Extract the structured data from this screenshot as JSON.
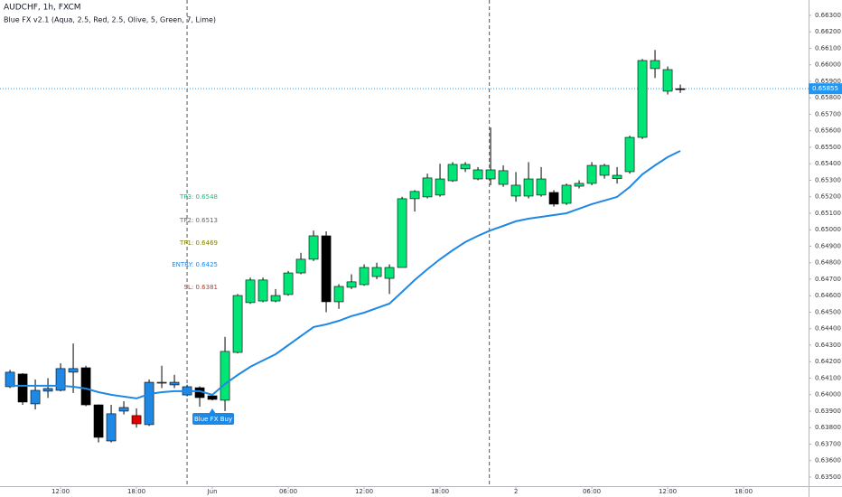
{
  "chart_data": {
    "type": "candlestick",
    "title": "AUDCHF, 1h, FXCM",
    "subtitle": "Blue FX v2.1 (Aqua, 2.5, Red, 2.5, Olive, 5, Green, 7, Lime)",
    "x": [
      8,
      9,
      10,
      11,
      12,
      13,
      14,
      15,
      16,
      17,
      18,
      19,
      20,
      21,
      22,
      23,
      24,
      25,
      26,
      27,
      28,
      29,
      30,
      31,
      32,
      33,
      34,
      35,
      36,
      37,
      38,
      39,
      40,
      41,
      42,
      43,
      44,
      45,
      46,
      47,
      48,
      49,
      50,
      51,
      52,
      53,
      54,
      55,
      56,
      57,
      58,
      59,
      60,
      61
    ],
    "open": [
      0.64048,
      0.64125,
      0.63944,
      0.64021,
      0.64026,
      0.64136,
      0.64163,
      0.63938,
      0.63719,
      0.639,
      0.63873,
      0.63818,
      0.6407,
      0.64059,
      0.63998,
      0.64042,
      0.63993,
      0.63966,
      0.64256,
      0.64558,
      0.64568,
      0.64568,
      0.64607,
      0.64738,
      0.64821,
      0.64963,
      0.64563,
      0.64651,
      0.64667,
      0.64716,
      0.64705,
      0.64771,
      0.65188,
      0.65199,
      0.6521,
      0.65297,
      0.65369,
      0.65308,
      0.65308,
      0.65275,
      0.65204,
      0.65204,
      0.6521,
      0.65226,
      0.6516,
      0.65264,
      0.65281,
      0.6533,
      0.6531,
      0.65352,
      0.6556,
      0.66026,
      0.65971,
      0.65855
    ],
    "high": [
      0.6415,
      0.6413,
      0.64092,
      0.641,
      0.6419,
      0.6431,
      0.64175,
      0.6394,
      0.63938,
      0.6396,
      0.63916,
      0.64092,
      0.64175,
      0.6412,
      0.6406,
      0.6405,
      0.64,
      0.6435,
      0.6461,
      0.6471,
      0.6471,
      0.6464,
      0.6475,
      0.6486,
      0.64995,
      0.6499,
      0.6467,
      0.6473,
      0.6479,
      0.648,
      0.6479,
      0.652,
      0.6524,
      0.6534,
      0.654,
      0.6541,
      0.6541,
      0.6538,
      0.6562,
      0.6539,
      0.6535,
      0.6541,
      0.6538,
      0.6524,
      0.6528,
      0.653,
      0.6541,
      0.654,
      0.6538,
      0.6557,
      0.66035,
      0.6609,
      0.6599,
      0.6588
    ],
    "low": [
      0.6404,
      0.63938,
      0.6391,
      0.6398,
      0.6402,
      0.6401,
      0.6393,
      0.6371,
      0.6371,
      0.6388,
      0.638,
      0.6381,
      0.6404,
      0.6404,
      0.6399,
      0.63927,
      0.63965,
      0.639,
      0.6425,
      0.6455,
      0.6456,
      0.6456,
      0.646,
      0.6473,
      0.6481,
      0.645,
      0.6452,
      0.6464,
      0.6466,
      0.647,
      0.6461,
      0.6477,
      0.6511,
      0.6519,
      0.652,
      0.6529,
      0.6535,
      0.653,
      0.6527,
      0.6526,
      0.6517,
      0.6519,
      0.652,
      0.6514,
      0.6515,
      0.6525,
      0.6527,
      0.6531,
      0.6528,
      0.6534,
      0.6555,
      0.6592,
      0.6582,
      0.6583
    ],
    "close": [
      0.64136,
      0.63955,
      0.64026,
      0.64037,
      0.64158,
      0.64158,
      0.63938,
      0.63741,
      0.63884,
      0.63922,
      0.63823,
      0.64075,
      0.64075,
      0.64075,
      0.64048,
      0.63982,
      0.63971,
      0.64262,
      0.64601,
      0.64695,
      0.64695,
      0.64601,
      0.64738,
      0.64821,
      0.64963,
      0.64563,
      0.64656,
      0.64684,
      0.64771,
      0.64771,
      0.64771,
      0.65188,
      0.65232,
      0.65314,
      0.65308,
      0.65396,
      0.65396,
      0.65363,
      0.65363,
      0.65358,
      0.6527,
      0.65308,
      0.65308,
      0.65155,
      0.6527,
      0.65281,
      0.6539,
      0.6539,
      0.6533,
      0.6556,
      0.66026,
      0.65977,
      0.6584,
      0.65855
    ],
    "colors": [
      "#1e88e5",
      "#000000",
      "#1e88e5",
      "#1e88e5",
      "#1e88e5",
      "#1e88e5",
      "#000000",
      "#000000",
      "#1e88e5",
      "#1e88e5",
      "#e00000",
      "#1e88e5",
      "#1e88e5",
      "#1e88e5",
      "#1e88e5",
      "#000000",
      "#000000",
      "#00e676",
      "#00e676",
      "#00e676",
      "#00e676",
      "#00e676",
      "#00e676",
      "#00e676",
      "#00e676",
      "#000000",
      "#00e676",
      "#00e676",
      "#00e676",
      "#00e676",
      "#00e676",
      "#00e676",
      "#00e676",
      "#00e676",
      "#00e676",
      "#00e676",
      "#00e676",
      "#00e676",
      "#00e676",
      "#00e676",
      "#00e676",
      "#00e676",
      "#00e676",
      "#000000",
      "#00e676",
      "#00e676",
      "#00e676",
      "#00e676",
      "#00e676",
      "#00e676",
      "#00e676",
      "#00e676",
      "#00e676",
      "#000000"
    ],
    "ma_values": [
      0.64054,
      0.64054,
      0.64054,
      0.64054,
      0.64054,
      0.64048,
      0.64037,
      0.64015,
      0.63999,
      0.63988,
      0.63977,
      0.64004,
      0.64015,
      0.64021,
      0.64021,
      0.64021,
      0.63999,
      0.64065,
      0.64119,
      0.64169,
      0.64207,
      0.64245,
      0.643,
      0.64355,
      0.6441,
      0.64426,
      0.64448,
      0.64476,
      0.64497,
      0.64525,
      0.64552,
      0.64623,
      0.64695,
      0.6476,
      0.64821,
      0.64875,
      0.64925,
      0.64963,
      0.64996,
      0.65023,
      0.65051,
      0.65067,
      0.65078,
      0.65089,
      0.651,
      0.65128,
      0.65155,
      0.65177,
      0.65199,
      0.65259,
      0.65336,
      0.6539,
      0.6544,
      0.65478
    ],
    "ma_color": "#1e88e5",
    "session_breaks": [
      22,
      45.9
    ],
    "price_line": 0.65855,
    "price_line_color": "#2196f3",
    "annotations": [
      {
        "text": "TP3: 0.6548",
        "color": "#00c97a"
      },
      {
        "text": "TP2: 0.6513",
        "color": "#666666"
      },
      {
        "text": "TP1: 0.6469",
        "color": "#808000"
      },
      {
        "text": "ENTRY: 0.6425",
        "color": "#1e88e5"
      },
      {
        "text": "SL: 0.6381",
        "color": "#c0392b"
      }
    ],
    "signal": {
      "text": "Blue FX Buy",
      "x": 24,
      "color": "#1e88e5"
    },
    "xlim": [
      7.21,
      71.14
    ],
    "ylim": [
      0.63445,
      0.66393
    ],
    "xticks": [
      {
        "value": 12,
        "label": "12:00"
      },
      {
        "value": 18,
        "label": "18:00"
      },
      {
        "value": 24,
        "label": "Jun"
      },
      {
        "value": 30,
        "label": "06:00"
      },
      {
        "value": 36,
        "label": "12:00"
      },
      {
        "value": 42,
        "label": "18:00"
      },
      {
        "value": 48,
        "label": "2"
      },
      {
        "value": 54,
        "label": "06:00"
      },
      {
        "value": 60,
        "label": "12:00"
      },
      {
        "value": 66,
        "label": "18:00"
      }
    ],
    "yticks": [
      {
        "value": 0.635,
        "label": "0.63500"
      },
      {
        "value": 0.636,
        "label": "0.63600"
      },
      {
        "value": 0.637,
        "label": "0.63700"
      },
      {
        "value": 0.638,
        "label": "0.63800"
      },
      {
        "value": 0.639,
        "label": "0.63900"
      },
      {
        "value": 0.64,
        "label": "0.64000"
      },
      {
        "value": 0.641,
        "label": "0.64100"
      },
      {
        "value": 0.642,
        "label": "0.64200"
      },
      {
        "value": 0.643,
        "label": "0.64300"
      },
      {
        "value": 0.644,
        "label": "0.64400"
      },
      {
        "value": 0.645,
        "label": "0.64500"
      },
      {
        "value": 0.646,
        "label": "0.64600"
      },
      {
        "value": 0.647,
        "label": "0.64700"
      },
      {
        "value": 0.648,
        "label": "0.64800"
      },
      {
        "value": 0.649,
        "label": "0.64900"
      },
      {
        "value": 0.65,
        "label": "0.65000"
      },
      {
        "value": 0.651,
        "label": "0.65100"
      },
      {
        "value": 0.652,
        "label": "0.65200"
      },
      {
        "value": 0.653,
        "label": "0.65300"
      },
      {
        "value": 0.654,
        "label": "0.65400"
      },
      {
        "value": 0.655,
        "label": "0.65500"
      },
      {
        "value": 0.656,
        "label": "0.65600"
      },
      {
        "value": 0.657,
        "label": "0.65700"
      },
      {
        "value": 0.658,
        "label": "0.65800"
      },
      {
        "value": 0.659,
        "label": "0.65900"
      },
      {
        "value": 0.66,
        "label": "0.66000"
      },
      {
        "value": 0.661,
        "label": "0.66100"
      },
      {
        "value": 0.662,
        "label": "0.66200"
      },
      {
        "value": 0.663,
        "label": "0.66300"
      }
    ],
    "grid": false
  }
}
